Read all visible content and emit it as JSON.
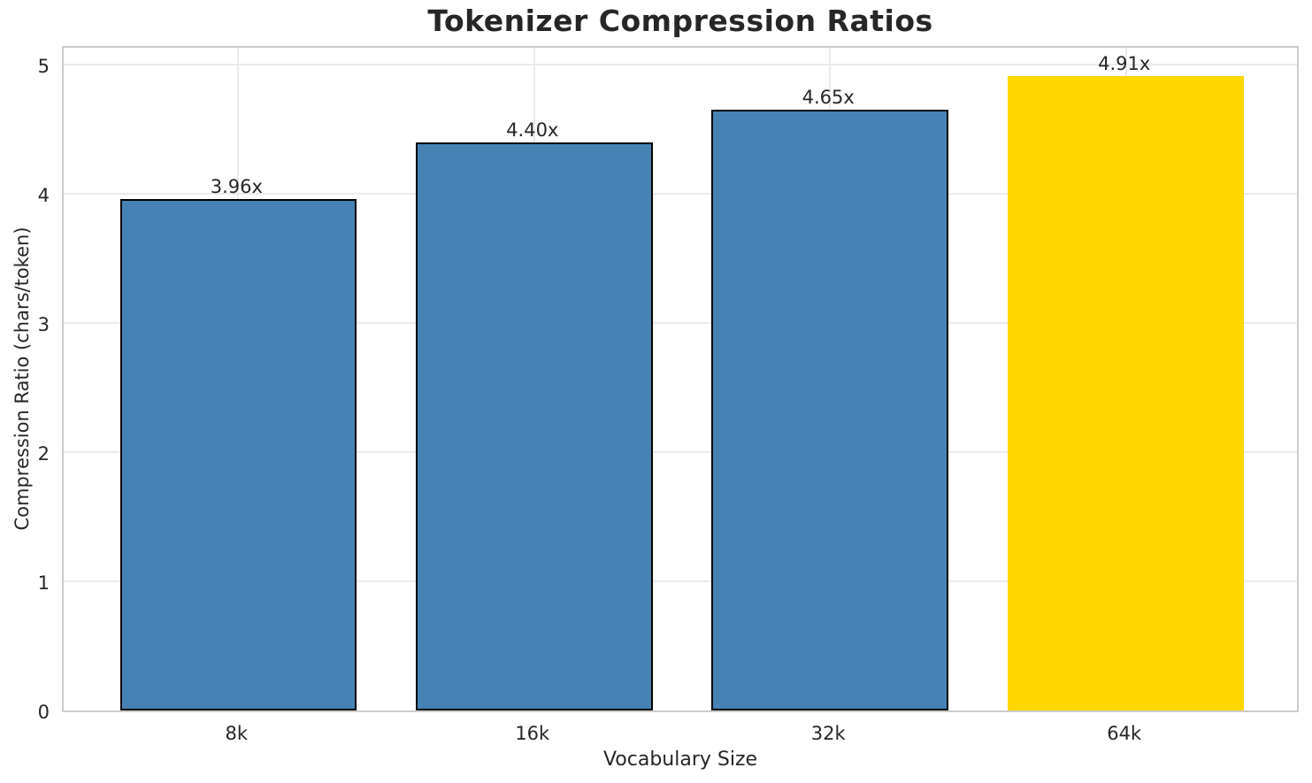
{
  "chart_data": {
    "type": "bar",
    "title": "Tokenizer Compression Ratios",
    "xlabel": "Vocabulary Size",
    "ylabel": "Compression Ratio (chars/token)",
    "categories": [
      "8k",
      "16k",
      "32k",
      "64k"
    ],
    "values": [
      3.96,
      4.4,
      4.65,
      4.91
    ],
    "bar_labels": [
      "3.96x",
      "4.40x",
      "4.65x",
      "4.91x"
    ],
    "bar_colors": [
      "#4682b4",
      "#4682b4",
      "#4682b4",
      "#ffd700"
    ],
    "bar_edge_colors": [
      "#000000",
      "#000000",
      "#000000",
      "none"
    ],
    "bar_edge_width": 2,
    "bar_width": 0.8,
    "ylim": [
      0,
      5.158
    ],
    "xlim": [
      -0.59,
      3.59
    ],
    "yticks": [
      0,
      1,
      2,
      3,
      4,
      5
    ],
    "grid": true,
    "legend": null,
    "colors": {
      "background": "#ffffff",
      "grid": "#ebebeb",
      "spine": "#cccccc",
      "text": "#262626",
      "highlight": "#ffd700",
      "base": "#4682b4"
    }
  }
}
